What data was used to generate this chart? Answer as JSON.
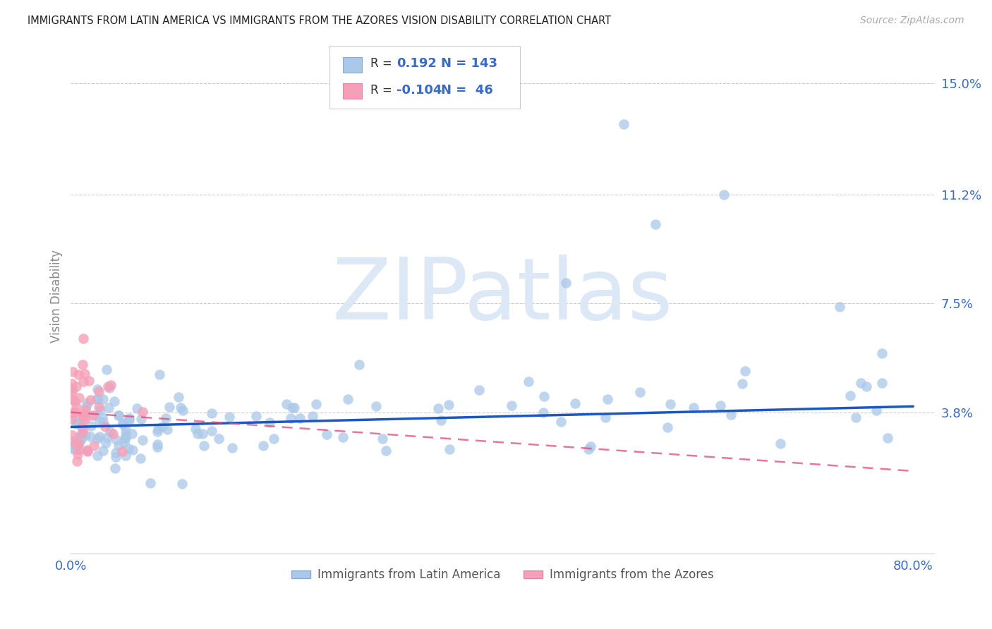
{
  "title": "IMMIGRANTS FROM LATIN AMERICA VS IMMIGRANTS FROM THE AZORES VISION DISABILITY CORRELATION CHART",
  "source": "Source: ZipAtlas.com",
  "ylabel_label": "Vision Disability",
  "ylabel_ticks": [
    0.038,
    0.075,
    0.112,
    0.15
  ],
  "ylabel_tick_labels": [
    "3.8%",
    "7.5%",
    "11.2%",
    "15.0%"
  ],
  "color_blue": "#aac8e8",
  "color_pink": "#f4a0b8",
  "line_blue": "#1a56c4",
  "line_pink": "#e04878",
  "watermark_text": "ZIPatlas",
  "watermark_color": "#dce8f5",
  "blue_trend_x": [
    0.0,
    0.8
  ],
  "blue_trend_y": [
    0.033,
    0.04
  ],
  "pink_trend_x": [
    0.0,
    0.8
  ],
  "pink_trend_y": [
    0.038,
    0.018
  ],
  "xlim": [
    0.0,
    0.82
  ],
  "ylim": [
    -0.01,
    0.165
  ],
  "grid_color": "#cccccc",
  "axis_label_color": "#3a6bc4",
  "title_color": "#222222",
  "source_color": "#aaaaaa",
  "ylabel_color": "#888888"
}
